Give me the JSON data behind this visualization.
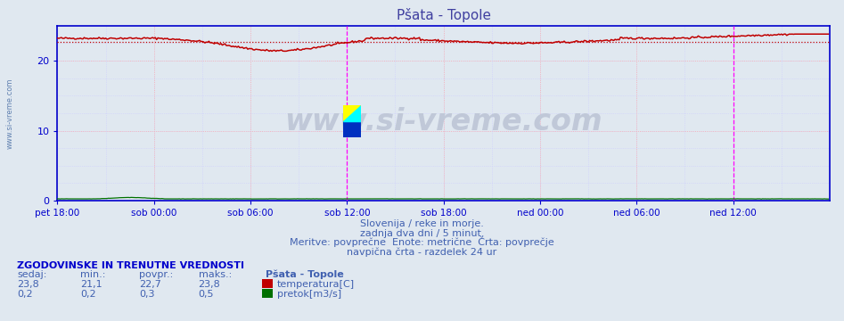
{
  "title": "Pšata - Topole",
  "title_color": "#4040a0",
  "bg_color": "#e0e8f0",
  "plot_bg_color": "#e0e8f0",
  "x_min": 0,
  "x_max": 576,
  "y_min": 0,
  "y_max": 25,
  "y_ticks": [
    0,
    10,
    20
  ],
  "x_tick_labels": [
    "pet 18:00",
    "sob 00:00",
    "sob 06:00",
    "sob 12:00",
    "sob 18:00",
    "ned 00:00",
    "ned 06:00",
    "ned 12:00"
  ],
  "x_tick_positions": [
    0,
    72,
    144,
    216,
    288,
    360,
    432,
    504
  ],
  "vertical_line_x": 216,
  "vertical_line2_x": 504,
  "temp_avg": 22.7,
  "temp_color": "#c00000",
  "flow_color": "#007000",
  "axis_color": "#0000cc",
  "grid_color_major": "#ffaaaa",
  "grid_color_minor": "#ccccff",
  "watermark_text": "www.si-vreme.com",
  "watermark_color": "#c0c8d8",
  "watermark_size": 24,
  "subtitle1": "Slovenija / reke in morje.",
  "subtitle2": "zadnja dva dni / 5 minut.",
  "subtitle3": "Meritve: povprečne  Enote: metrične  Črta: povprečje",
  "subtitle4": "navpična črta - razdelek 24 ur",
  "subtitle_color": "#4060b0",
  "table_header": "ZGODOVINSKE IN TRENUTNE VREDNOSTI",
  "table_header_color": "#0000cc",
  "col_sedaj": "sedaj:",
  "col_min": "min.:",
  "col_povpr": "povpr.:",
  "col_maks": "maks.:",
  "station_label": "Pšata - Topole",
  "row1_vals": [
    "23,8",
    "21,1",
    "22,7",
    "23,8"
  ],
  "row2_vals": [
    "0,2",
    "0,2",
    "0,3",
    "0,5"
  ],
  "label1": "temperatura[C]",
  "label2": "pretok[m3/s]",
  "sidewater_color": "#6080b0"
}
